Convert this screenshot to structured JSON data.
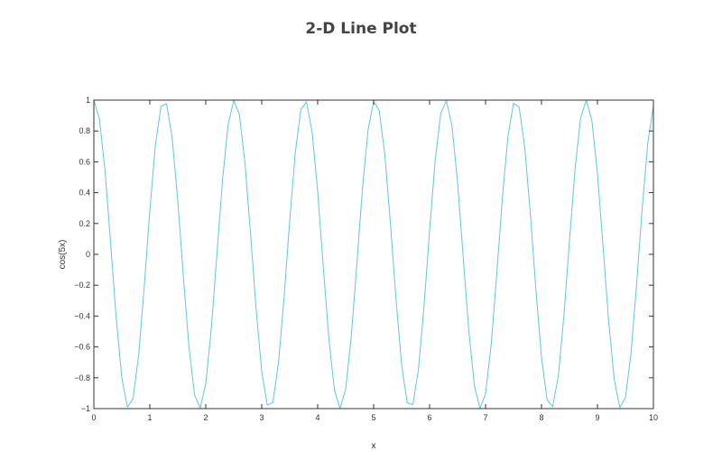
{
  "chart_data": {
    "type": "line",
    "title": "2-D Line Plot",
    "xlabel": "x",
    "ylabel": "cos(5x)",
    "xlim": [
      0,
      10
    ],
    "ylim": [
      -1,
      1
    ],
    "x_ticks": [
      0,
      1,
      2,
      3,
      4,
      5,
      6,
      7,
      8,
      9,
      10
    ],
    "y_ticks": [
      -1,
      -0.8,
      -0.6,
      -0.4,
      -0.2,
      0,
      0.2,
      0.4,
      0.6,
      0.8,
      1
    ],
    "x_tick_labels": [
      "0",
      "1",
      "2",
      "3",
      "4",
      "5",
      "6",
      "7",
      "8",
      "9",
      "10"
    ],
    "y_tick_labels": [
      "−1",
      "−0.8",
      "−0.6",
      "−0.4",
      "−0.2",
      "0",
      "0.2",
      "0.4",
      "0.6",
      "0.8",
      "1"
    ],
    "grid": false,
    "series": [
      {
        "function": "cos(5x)",
        "x_start": 0,
        "x_end": 10,
        "x_step": 0.1,
        "color": "#5bc8e6"
      }
    ]
  }
}
